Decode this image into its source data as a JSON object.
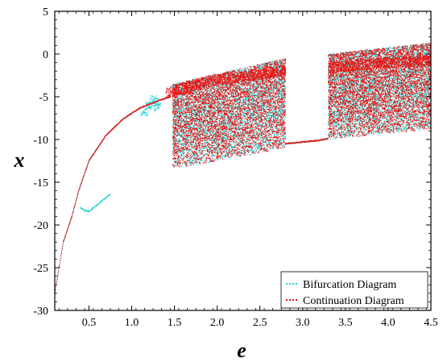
{
  "chart_data": {
    "type": "scatter",
    "xlabel": "e",
    "ylabel": "x",
    "xlim": [
      0.1,
      4.5
    ],
    "ylim": [
      -30,
      5
    ],
    "x_ticks": [
      0.5,
      1.0,
      1.5,
      2.0,
      2.5,
      3.0,
      3.5,
      4.0,
      4.5
    ],
    "x_tick_labels": [
      "0.5",
      "1.0",
      "1.5",
      "2.0",
      "2.5",
      "3.0",
      "3.5",
      "4.0",
      "4.5"
    ],
    "y_ticks": [
      -30,
      -25,
      -20,
      -15,
      -10,
      -5,
      0,
      5
    ],
    "y_tick_labels": [
      "-30",
      "-25",
      "-20",
      "-15",
      "-10",
      "-5",
      "0",
      "5"
    ],
    "legend_position": "bottom-right",
    "series": [
      {
        "name": "Bifurcation Diagram",
        "color": "#22d3d3",
        "marker": "dots",
        "features": {
          "main_branch": [
            [
              0.1,
              -28.0
            ],
            [
              0.2,
              -22.0
            ],
            [
              0.3,
              -19.0
            ],
            [
              0.38,
              -16.0
            ],
            [
              0.5,
              -12.5
            ],
            [
              0.7,
              -9.5
            ],
            [
              0.9,
              -7.6
            ],
            [
              1.1,
              -6.3
            ],
            [
              1.3,
              -5.5
            ],
            [
              1.45,
              -5.0
            ]
          ],
          "side_branch": [
            [
              0.4,
              -18.0
            ],
            [
              0.45,
              -18.3
            ],
            [
              0.5,
              -18.4
            ],
            [
              0.6,
              -17.6
            ],
            [
              0.7,
              -16.8
            ],
            [
              0.75,
              -16.4
            ]
          ],
          "small_cluster": [
            [
              1.15,
              -6.8
            ],
            [
              1.2,
              -6.0
            ],
            [
              1.25,
              -5.3
            ],
            [
              1.28,
              -5.6
            ],
            [
              1.3,
              -6.2
            ]
          ],
          "chaotic_bands": [
            {
              "e_range": [
                1.48,
                2.8
              ],
              "x_min_start": -13.5,
              "x_min_end": -11.0,
              "x_max_start": -3.5,
              "x_max_end": -0.5
            },
            {
              "e_range": [
                3.3,
                4.5
              ],
              "x_min_start": -10.0,
              "x_min_end": -8.8,
              "x_max_start": 0.0,
              "x_max_end": 1.3
            }
          ],
          "periodic_window": [
            [
              2.8,
              -10.5
            ],
            [
              3.0,
              -10.3
            ],
            [
              3.2,
              -10.1
            ],
            [
              3.3,
              -9.9
            ]
          ]
        }
      },
      {
        "name": "Continuation Diagram",
        "color": "#ee1111",
        "marker": "dots",
        "features": {
          "main_branch": [
            [
              0.1,
              -28.0
            ],
            [
              0.2,
              -22.0
            ],
            [
              0.3,
              -19.0
            ],
            [
              0.38,
              -16.0
            ],
            [
              0.5,
              -12.5
            ],
            [
              0.7,
              -9.5
            ],
            [
              0.9,
              -7.6
            ],
            [
              1.1,
              -6.3
            ],
            [
              1.3,
              -5.5
            ],
            [
              1.45,
              -5.0
            ]
          ],
          "chaotic_bands": [
            {
              "e_range": [
                1.48,
                2.8
              ],
              "x_min_start": -13.5,
              "x_min_end": -11.0,
              "x_max_start": -3.5,
              "x_max_end": -0.5
            },
            {
              "e_range": [
                3.3,
                4.5
              ],
              "x_min_start": -10.0,
              "x_min_end": -8.8,
              "x_max_start": 0.0,
              "x_max_end": 1.3
            }
          ],
          "dense_upper_band": [
            [
              1.4,
              -4.6
            ],
            [
              2.0,
              -3.0
            ],
            [
              2.8,
              -2.0
            ],
            [
              3.3,
              -1.6
            ],
            [
              4.0,
              -1.0
            ],
            [
              4.5,
              -0.8
            ]
          ],
          "periodic_window": [
            [
              2.8,
              -10.5
            ],
            [
              3.0,
              -10.3
            ],
            [
              3.2,
              -10.1
            ],
            [
              3.3,
              -9.9
            ]
          ]
        }
      }
    ]
  }
}
